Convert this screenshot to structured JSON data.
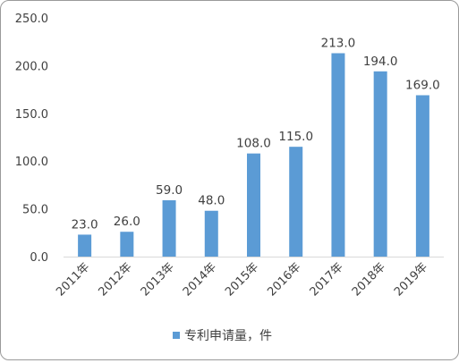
{
  "chart_data": {
    "type": "bar",
    "categories": [
      "2011年",
      "2012年",
      "2013年",
      "2014年",
      "2015年",
      "2016年",
      "2017年",
      "2018年",
      "2019年"
    ],
    "series": [
      {
        "name": "专利申请量，件",
        "values": [
          23.0,
          26.0,
          59.0,
          48.0,
          108.0,
          115.0,
          213.0,
          194.0,
          169.0
        ],
        "data_labels": [
          "23.0",
          "26.0",
          "59.0",
          "48.0",
          "108.0",
          "115.0",
          "213.0",
          "194.0",
          "169.0"
        ]
      }
    ],
    "yticks": [
      {
        "value": 0,
        "label": "0.0"
      },
      {
        "value": 50,
        "label": "50.0"
      },
      {
        "value": 100,
        "label": "100.0"
      },
      {
        "value": 150,
        "label": "150.0"
      },
      {
        "value": 200,
        "label": "200.0"
      },
      {
        "value": 250,
        "label": "250.0"
      }
    ],
    "ylim": [
      0,
      250
    ],
    "grid": false,
    "legend_position": "bottom",
    "colors": {
      "bar": "#5b9bd5",
      "axis": "#d9d9d9",
      "text": "#404040"
    }
  }
}
